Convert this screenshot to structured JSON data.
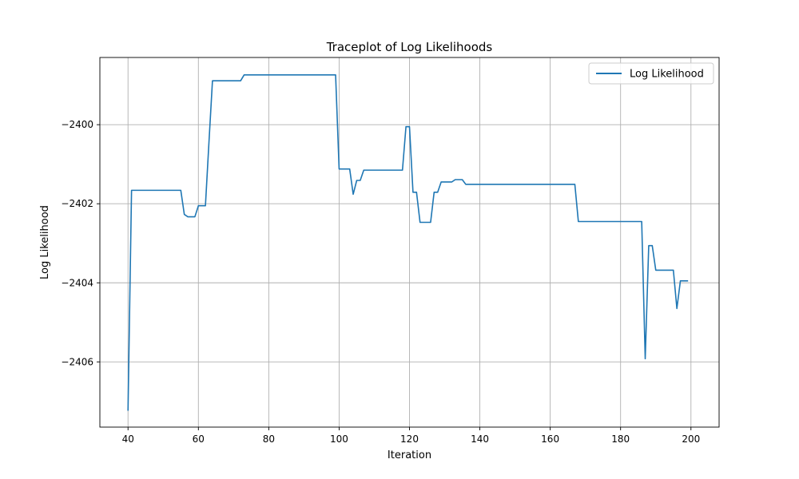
{
  "chart_data": {
    "type": "line",
    "title": "Traceplot of Log Likelihoods",
    "xlabel": "Iteration",
    "ylabel": "Log Likelihood",
    "xlim": [
      32.0,
      208.0
    ],
    "ylim": [
      -2407.65,
      -2398.3
    ],
    "xticks": [
      40,
      60,
      80,
      100,
      120,
      140,
      160,
      180,
      200
    ],
    "xtick_labels": [
      "40",
      "60",
      "80",
      "100",
      "120",
      "140",
      "160",
      "180",
      "200"
    ],
    "yticks": [
      -2406,
      -2404,
      -2402,
      -2400
    ],
    "ytick_labels": [
      "−2406",
      "−2404",
      "−2402",
      "−2400"
    ],
    "grid": true,
    "legend_position": "top-right",
    "colors": {
      "series": "#1f77b4"
    },
    "series": [
      {
        "name": "Log Likelihood",
        "x": [
          40,
          41,
          42,
          43,
          44,
          45,
          46,
          47,
          48,
          49,
          50,
          51,
          52,
          53,
          54,
          55,
          56,
          57,
          58,
          59,
          60,
          61,
          62,
          63,
          64,
          65,
          66,
          67,
          68,
          69,
          70,
          71,
          72,
          73,
          74,
          75,
          76,
          77,
          78,
          79,
          80,
          81,
          82,
          83,
          84,
          85,
          86,
          87,
          88,
          89,
          90,
          91,
          92,
          93,
          94,
          95,
          96,
          97,
          98,
          99,
          100,
          101,
          102,
          103,
          104,
          105,
          106,
          107,
          108,
          109,
          110,
          111,
          112,
          113,
          114,
          115,
          116,
          117,
          118,
          119,
          120,
          121,
          122,
          123,
          124,
          125,
          126,
          127,
          128,
          129,
          130,
          131,
          132,
          133,
          134,
          135,
          136,
          137,
          138,
          139,
          140,
          141,
          142,
          143,
          144,
          145,
          146,
          147,
          148,
          149,
          150,
          151,
          152,
          153,
          154,
          155,
          156,
          157,
          158,
          159,
          160,
          161,
          162,
          163,
          164,
          165,
          166,
          167,
          168,
          169,
          170,
          171,
          172,
          173,
          174,
          175,
          176,
          177,
          178,
          179,
          180,
          181,
          182,
          183,
          184,
          185,
          186,
          187,
          188,
          189,
          190,
          191,
          192,
          193,
          194,
          195,
          196,
          197,
          198,
          199
        ],
        "y": [
          -2407.22,
          -2401.66,
          -2401.66,
          -2401.66,
          -2401.66,
          -2401.66,
          -2401.66,
          -2401.66,
          -2401.66,
          -2401.66,
          -2401.66,
          -2401.66,
          -2401.66,
          -2401.66,
          -2401.66,
          -2401.66,
          -2402.27,
          -2402.33,
          -2402.33,
          -2402.33,
          -2402.05,
          -2402.05,
          -2402.05,
          -2400.45,
          -2398.89,
          -2398.89,
          -2398.89,
          -2398.89,
          -2398.89,
          -2398.89,
          -2398.89,
          -2398.89,
          -2398.89,
          -2398.74,
          -2398.74,
          -2398.74,
          -2398.74,
          -2398.74,
          -2398.74,
          -2398.74,
          -2398.74,
          -2398.74,
          -2398.74,
          -2398.74,
          -2398.74,
          -2398.74,
          -2398.74,
          -2398.74,
          -2398.74,
          -2398.74,
          -2398.74,
          -2398.74,
          -2398.74,
          -2398.74,
          -2398.74,
          -2398.74,
          -2398.74,
          -2398.74,
          -2398.74,
          -2398.74,
          -2401.12,
          -2401.12,
          -2401.12,
          -2401.12,
          -2401.76,
          -2401.41,
          -2401.41,
          -2401.15,
          -2401.15,
          -2401.15,
          -2401.15,
          -2401.15,
          -2401.15,
          -2401.15,
          -2401.15,
          -2401.15,
          -2401.15,
          -2401.15,
          -2401.15,
          -2400.05,
          -2400.05,
          -2401.71,
          -2401.71,
          -2402.47,
          -2402.47,
          -2402.47,
          -2402.47,
          -2401.71,
          -2401.71,
          -2401.45,
          -2401.45,
          -2401.45,
          -2401.45,
          -2401.39,
          -2401.39,
          -2401.39,
          -2401.51,
          -2401.51,
          -2401.51,
          -2401.51,
          -2401.51,
          -2401.51,
          -2401.51,
          -2401.51,
          -2401.51,
          -2401.51,
          -2401.51,
          -2401.51,
          -2401.51,
          -2401.51,
          -2401.51,
          -2401.51,
          -2401.51,
          -2401.51,
          -2401.51,
          -2401.51,
          -2401.51,
          -2401.51,
          -2401.51,
          -2401.51,
          -2401.51,
          -2401.51,
          -2401.51,
          -2401.51,
          -2401.51,
          -2401.51,
          -2401.51,
          -2401.51,
          -2402.45,
          -2402.45,
          -2402.45,
          -2402.45,
          -2402.45,
          -2402.45,
          -2402.45,
          -2402.45,
          -2402.45,
          -2402.45,
          -2402.45,
          -2402.45,
          -2402.45,
          -2402.45,
          -2402.45,
          -2402.45,
          -2402.45,
          -2402.45,
          -2402.45,
          -2405.92,
          -2403.06,
          -2403.06,
          -2403.68,
          -2403.68,
          -2403.68,
          -2403.68,
          -2403.68,
          -2403.68,
          -2404.65,
          -2403.95,
          -2403.95,
          -2403.95
        ]
      }
    ]
  }
}
